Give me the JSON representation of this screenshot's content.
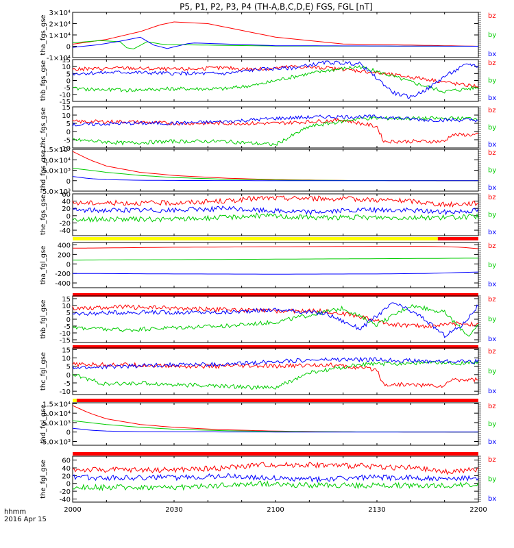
{
  "chart_data": {
    "type": "line",
    "title": "P5, P1, P2, P3, P4 (TH-A,B,C,D,E) FGS, FGL [nT]",
    "x_ticks": [
      "2000",
      "2030",
      "2100",
      "2130",
      "2200"
    ],
    "x_range": [
      "20:00",
      "22:00"
    ],
    "footer_label": "hhmm",
    "footer_date": "2016 Apr 15",
    "legend": [
      "bz",
      "by",
      "bx"
    ],
    "legend_colors": {
      "bz": "#ff0000",
      "by": "#00cc00",
      "bx": "#0000ff"
    },
    "panels": [
      {
        "ylabel": "tha_fgs_gse",
        "ylim": [
          -10000,
          30000
        ],
        "ytick_labels": [
          "3×10⁴",
          "2×10⁴",
          "1×10⁴",
          "0",
          "-1×10⁴"
        ],
        "ytick_values": [
          30000,
          20000,
          10000,
          0,
          -10000
        ],
        "status_bar": null,
        "series": [
          {
            "name": "bz",
            "x": [
              0,
              10,
              20,
              26,
              30,
              40,
              50,
              60,
              80,
              120
            ],
            "values": [
              1800,
              6000,
              13000,
              19000,
              21500,
              20000,
              14000,
              8000,
              2000,
              0
            ]
          },
          {
            "name": "by",
            "x": [
              0,
              8,
              14,
              17,
              22,
              27,
              35,
              45,
              60,
              120
            ],
            "values": [
              3000,
              5000,
              4000,
              -4000,
              4000,
              1500,
              1200,
              800,
              200,
              0
            ]
          },
          {
            "name": "bx",
            "x": [
              0,
              8,
              15,
              20,
              24,
              28,
              35,
              45,
              60,
              120
            ],
            "values": [
              -1000,
              1500,
              5000,
              8000,
              1000,
              -2000,
              3000,
              2000,
              500,
              0
            ]
          }
        ]
      },
      {
        "ylabel": "thb_fgs_gse",
        "ylim": [
          -15,
          15
        ],
        "ytick_labels": [
          "15",
          "10",
          "5",
          "0",
          "-5",
          "-10",
          "-15"
        ],
        "ytick_values": [
          15,
          10,
          5,
          0,
          -5,
          -10,
          -15
        ],
        "status_bar": null,
        "series": [
          {
            "name": "bz",
            "x": [
              0,
              15,
              30,
              45,
              55,
              65,
              75,
              85,
              95,
              105,
              115,
              120
            ],
            "values": [
              8,
              9,
              8,
              9,
              8,
              10,
              9,
              7,
              4,
              1,
              -3,
              -4
            ]
          },
          {
            "name": "by",
            "x": [
              0,
              15,
              30,
              45,
              55,
              62,
              68,
              75,
              85,
              92,
              100,
              110,
              120
            ],
            "values": [
              -6,
              -7,
              -6,
              -6,
              -3,
              1,
              4,
              7,
              10,
              5,
              -1,
              -8,
              -5
            ]
          },
          {
            "name": "bx",
            "x": [
              0,
              15,
              30,
              45,
              55,
              65,
              75,
              85,
              95,
              100,
              105,
              110,
              117,
              120
            ],
            "values": [
              5,
              6,
              5,
              5,
              8,
              9,
              13,
              12,
              -9,
              -12,
              -6,
              3,
              12,
              10
            ]
          }
        ]
      },
      {
        "ylabel": "thc_fgs_gse",
        "ylim": [
          -10,
          15
        ],
        "ytick_labels": [
          "15",
          "10",
          "5",
          "0",
          "-5",
          "-10"
        ],
        "ytick_values": [
          15,
          10,
          5,
          0,
          -5,
          -10
        ],
        "status_bar": null,
        "series": [
          {
            "name": "bz",
            "x": [
              0,
              15,
              30,
              45,
              60,
              80,
              90,
              92,
              100,
              110,
              112,
              120
            ],
            "values": [
              6,
              6,
              5,
              5,
              5,
              7,
              3,
              -6,
              -6,
              -6,
              -2,
              -2
            ]
          },
          {
            "name": "by",
            "x": [
              0,
              15,
              30,
              45,
              60,
              70,
              85,
              100,
              120
            ],
            "values": [
              -5,
              -7,
              -6,
              -6,
              -8,
              3,
              8,
              8,
              8
            ]
          },
          {
            "name": "bx",
            "x": [
              0,
              15,
              30,
              45,
              60,
              75,
              90,
              105,
              120
            ],
            "values": [
              4,
              5,
              5,
              6,
              8,
              9,
              9,
              7,
              7
            ]
          }
        ]
      },
      {
        "ylabel": "thd_fgs_gse",
        "ylim": [
          -5000,
          15000
        ],
        "ytick_labels": [
          "1.5×10⁴",
          "1.0×10⁴",
          "5.0×10³",
          "0",
          "-5.0×10³"
        ],
        "ytick_values": [
          15000,
          10000,
          5000,
          0,
          -5000
        ],
        "status_bar": null,
        "series": [
          {
            "name": "bz",
            "x": [
              0,
              5,
              10,
              20,
              30,
              45,
              60,
              80,
              120
            ],
            "values": [
              14000,
              10000,
              7000,
              4000,
              2500,
              1200,
              500,
              100,
              0
            ]
          },
          {
            "name": "by",
            "x": [
              0,
              5,
              10,
              20,
              30,
              45,
              60,
              80,
              120
            ],
            "values": [
              6000,
              5000,
              4000,
              2500,
              1500,
              700,
              300,
              100,
              0
            ]
          },
          {
            "name": "bx",
            "x": [
              0,
              5,
              10,
              20,
              30,
              45,
              60,
              80,
              120
            ],
            "values": [
              2000,
              1000,
              500,
              200,
              100,
              50,
              20,
              0,
              0
            ]
          }
        ]
      },
      {
        "ylabel": "the_fgs_gse",
        "ylim": [
          -55,
          60
        ],
        "ytick_labels": [
          "60",
          "40",
          "20",
          "0",
          "-20",
          "-40"
        ],
        "ytick_values": [
          60,
          40,
          20,
          0,
          -20,
          -40
        ],
        "status_bar": {
          "colors": [
            "#ffff00",
            "#ff0000"
          ],
          "split": 0.9
        },
        "series": [
          {
            "name": "bz",
            "x": [
              0,
              15,
              30,
              45,
              55,
              70,
              85,
              100,
              110,
              120
            ],
            "values": [
              35,
              35,
              35,
              40,
              48,
              48,
              45,
              40,
              30,
              35
            ]
          },
          {
            "name": "by",
            "x": [
              0,
              15,
              30,
              45,
              55,
              70,
              85,
              100,
              110,
              120
            ],
            "values": [
              -10,
              -10,
              -10,
              -5,
              0,
              -5,
              -5,
              -5,
              -5,
              -3
            ]
          },
          {
            "name": "bx",
            "x": [
              0,
              15,
              30,
              45,
              55,
              70,
              85,
              100,
              110,
              120
            ],
            "values": [
              15,
              15,
              15,
              20,
              15,
              10,
              15,
              15,
              10,
              15
            ]
          }
        ]
      },
      {
        "ylabel": "tha_fgl_gse",
        "ylim": [
          -500,
          450
        ],
        "ytick_labels": [
          "400",
          "200",
          "0",
          "-200",
          "-400"
        ],
        "ytick_values": [
          400,
          200,
          0,
          -200,
          -400
        ],
        "status_bar": {
          "colors": [
            "#ff0000"
          ],
          "split": 1
        },
        "series": [
          {
            "name": "bz",
            "x": [
              0,
              30,
              60,
              90,
              105,
              115,
              120
            ],
            "values": [
              330,
              350,
              360,
              370,
              370,
              350,
              320
            ]
          },
          {
            "name": "by",
            "x": [
              0,
              30,
              60,
              90,
              105,
              115,
              120
            ],
            "values": [
              80,
              90,
              100,
              110,
              115,
              120,
              120
            ]
          },
          {
            "name": "bx",
            "x": [
              0,
              30,
              60,
              90,
              105,
              115,
              120
            ],
            "values": [
              -200,
              -210,
              -215,
              -210,
              -200,
              -180,
              -170
            ]
          }
        ]
      },
      {
        "ylabel": "thb_fgl_gse",
        "ylim": [
          -17,
          17
        ],
        "ytick_labels": [
          "15",
          "10",
          "5",
          "0",
          "-5",
          "-10",
          "-15"
        ],
        "ytick_values": [
          15,
          10,
          5,
          0,
          -5,
          -10,
          -15
        ],
        "status_bar": {
          "colors": [
            "#ff0000"
          ],
          "split": 1
        },
        "series": [
          {
            "name": "bz",
            "x": [
              0,
              15,
              30,
              45,
              60,
              75,
              85,
              95,
              105,
              115,
              120
            ],
            "values": [
              8,
              9,
              8,
              7,
              6,
              6,
              2,
              -4,
              -5,
              -3,
              -4
            ]
          },
          {
            "name": "by",
            "x": [
              0,
              15,
              30,
              45,
              60,
              70,
              80,
              90,
              100,
              110,
              117,
              120
            ],
            "values": [
              -6,
              -8,
              -6,
              -5,
              -2,
              3,
              8,
              -4,
              10,
              5,
              -12,
              -5
            ]
          },
          {
            "name": "bx",
            "x": [
              0,
              15,
              30,
              45,
              60,
              75,
              85,
              95,
              103,
              110,
              115,
              120
            ],
            "values": [
              4,
              5,
              5,
              5,
              7,
              4,
              -7,
              12,
              2,
              -12,
              -5,
              10
            ]
          }
        ]
      },
      {
        "ylabel": "thc_fgl_gse",
        "ylim": [
          -12,
          16
        ],
        "ytick_labels": [
          "15",
          "10",
          "5",
          "0",
          "-5",
          "-10"
        ],
        "ytick_values": [
          15,
          10,
          5,
          0,
          -5,
          -10
        ],
        "status_bar": {
          "colors": [
            "#ffff00",
            "#ff0000"
          ],
          "split": 0.01
        },
        "series": [
          {
            "name": "bz",
            "x": [
              0,
              15,
              30,
              45,
              60,
              75,
              90,
              92,
              100,
              110,
              112,
              120
            ],
            "values": [
              6,
              6,
              5,
              5,
              5,
              6,
              3,
              -6,
              -6,
              -7,
              -3,
              -3
            ]
          },
          {
            "name": "by",
            "x": [
              0,
              10,
              20,
              30,
              45,
              60,
              70,
              85,
              100,
              120
            ],
            "values": [
              0,
              -6,
              -5,
              -6,
              -7,
              -8,
              1,
              6,
              7,
              7
            ]
          },
          {
            "name": "bx",
            "x": [
              0,
              15,
              30,
              45,
              60,
              75,
              90,
              105,
              120
            ],
            "values": [
              4,
              5,
              6,
              6,
              8,
              9,
              9,
              8,
              8
            ]
          }
        ]
      },
      {
        "ylabel": "thd_fgl_gse",
        "ylim": [
          -7000,
          15500
        ],
        "ytick_labels": [
          "1.5×10⁴",
          "1.0×10⁴",
          "5.0×10³",
          "0",
          "-5.0×10³"
        ],
        "ytick_values": [
          15000,
          10000,
          5000,
          0,
          -5000
        ],
        "status_bar": {
          "colors": [
            "#ff0000"
          ],
          "split": 1
        },
        "series": [
          {
            "name": "bz",
            "x": [
              0,
              5,
              10,
              20,
              30,
              45,
              60,
              80,
              120
            ],
            "values": [
              14000,
              10000,
              7000,
              4000,
              2500,
              1200,
              500,
              100,
              0
            ]
          },
          {
            "name": "by",
            "x": [
              0,
              5,
              10,
              20,
              30,
              45,
              60,
              80,
              120
            ],
            "values": [
              6000,
              5000,
              4000,
              2500,
              1500,
              700,
              300,
              100,
              0
            ]
          },
          {
            "name": "bx",
            "x": [
              0,
              5,
              10,
              20,
              30,
              45,
              60,
              80,
              120
            ],
            "values": [
              2000,
              1000,
              500,
              200,
              100,
              50,
              20,
              0,
              0
            ]
          }
        ]
      },
      {
        "ylabel": "the_fgl_gse",
        "ylim": [
          -48,
          70
        ],
        "ytick_labels": [
          "60",
          "40",
          "20",
          "0",
          "-20",
          "-40"
        ],
        "ytick_values": [
          60,
          40,
          20,
          0,
          -20,
          -40
        ],
        "status_bar": null,
        "series": [
          {
            "name": "bz",
            "x": [
              0,
              15,
              30,
              45,
              55,
              70,
              85,
              100,
              110,
              120
            ],
            "values": [
              35,
              35,
              35,
              40,
              48,
              48,
              45,
              40,
              30,
              35
            ]
          },
          {
            "name": "by",
            "x": [
              0,
              15,
              30,
              45,
              55,
              70,
              85,
              100,
              110,
              120
            ],
            "values": [
              -10,
              -10,
              -10,
              -5,
              0,
              -5,
              -5,
              -5,
              -5,
              -3
            ]
          },
          {
            "name": "bx",
            "x": [
              0,
              15,
              30,
              45,
              55,
              70,
              85,
              100,
              110,
              120
            ],
            "values": [
              15,
              15,
              15,
              20,
              15,
              10,
              15,
              15,
              10,
              15
            ]
          }
        ]
      }
    ]
  }
}
